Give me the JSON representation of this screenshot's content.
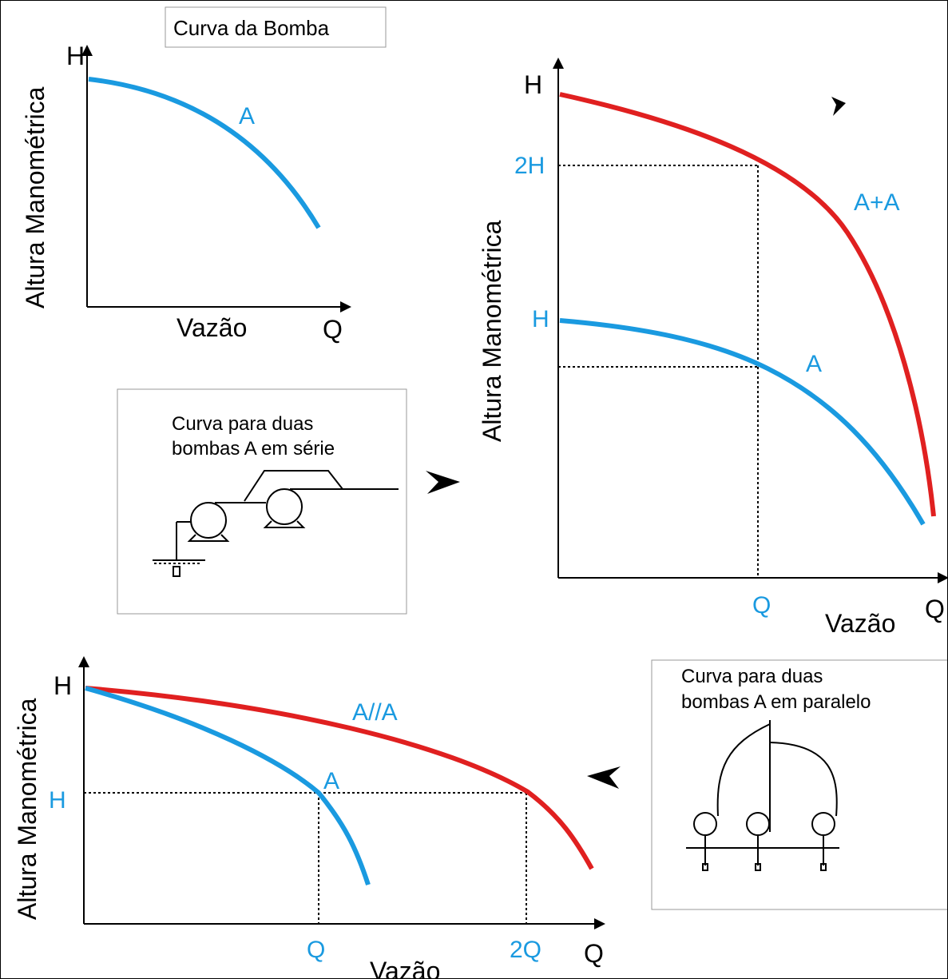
{
  "colors": {
    "blue": "#1a9ae0",
    "red": "#e02020",
    "black": "#000000"
  },
  "panel_single": {
    "title": "Curva da Bomba",
    "y_axis_label": "Altura Manométrica",
    "y_axis_symbol": "H",
    "x_axis_label": "Vazão",
    "x_axis_symbol": "Q",
    "curve_label": "A"
  },
  "panel_series": {
    "y_axis_label": "Altura Manométrica",
    "y_axis_symbol": "H",
    "x_axis_label": "Vazão",
    "x_axis_symbol": "Q",
    "tick_2h": "2H",
    "tick_h": "H",
    "tick_q": "Q",
    "curve_sum_label": "A+A",
    "curve_single_label": "A"
  },
  "box_series": {
    "title_line1": "Curva para duas",
    "title_line2": "bombas A em série"
  },
  "panel_parallel": {
    "y_axis_label": "Altura Manométrica",
    "y_axis_symbol": "H",
    "x_axis_label": "Vazão",
    "x_axis_symbol": "Q",
    "tick_h": "H",
    "tick_q": "Q",
    "tick_2q": "2Q",
    "curve_par_label": "A//A",
    "curve_single_label": "A"
  },
  "box_parallel": {
    "title_line1": "Curva para duas",
    "title_line2": "bombas A em paralelo"
  }
}
